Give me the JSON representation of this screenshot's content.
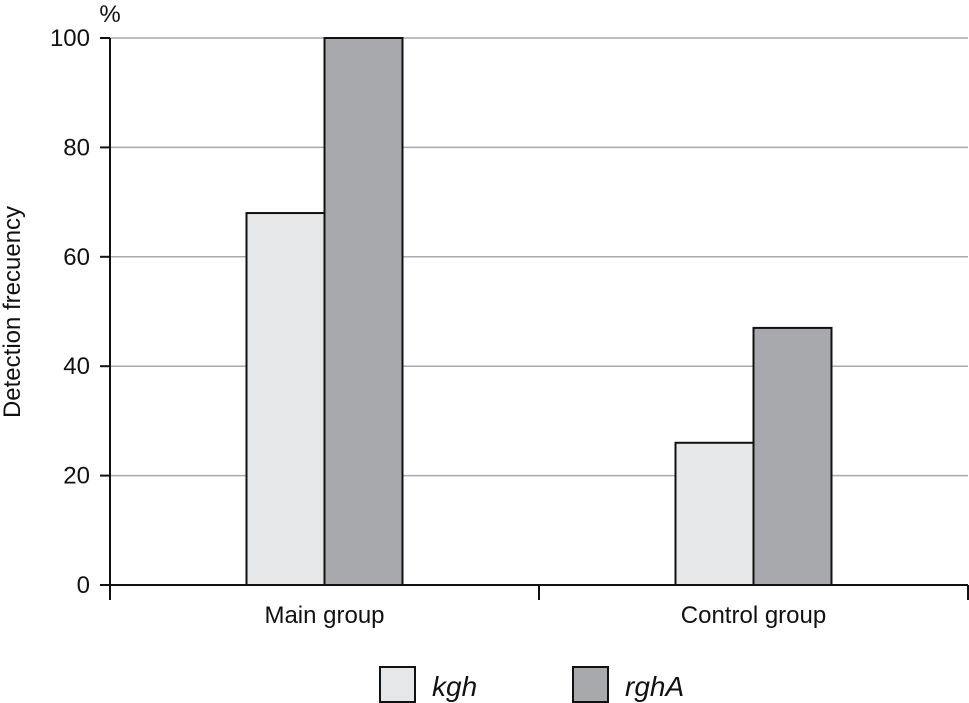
{
  "chart_data": {
    "type": "bar",
    "categories": [
      "Main group",
      "Control group"
    ],
    "series": [
      {
        "name": "kgh",
        "values": [
          68,
          26
        ],
        "color": "#e6e7e8"
      },
      {
        "name": "rghA",
        "values": [
          100,
          47
        ],
        "color": "#a7a9ac"
      }
    ],
    "ylabel": "Detection  frecuency",
    "yunit": "%",
    "ylim": [
      0,
      100
    ],
    "yticks": [
      0,
      20,
      40,
      60,
      80,
      100
    ],
    "grid": true,
    "legend_position": "bottom-center"
  }
}
